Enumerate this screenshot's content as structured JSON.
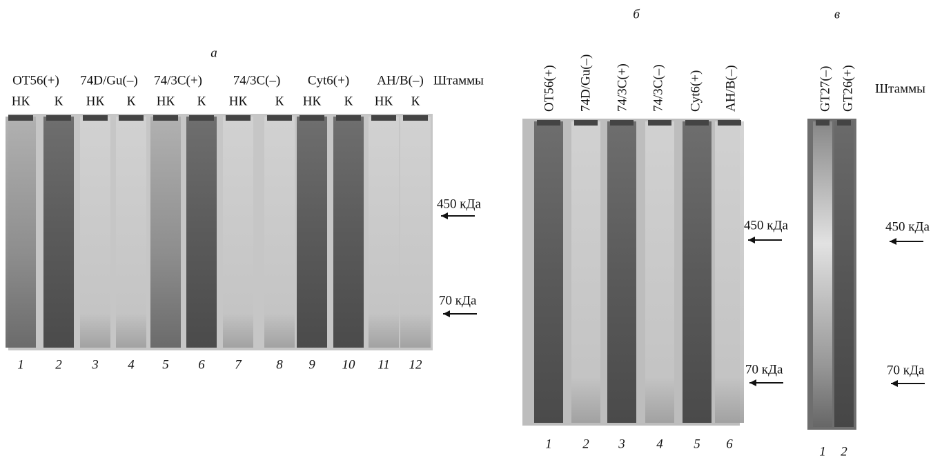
{
  "panels": [
    {
      "label": "а",
      "strains": [
        "OT56(+)",
        "74D/Gu(–)",
        "74/3C(+)",
        "74/3C(–)",
        "Cyt6(+)",
        "AH/B(–)"
      ],
      "strains_heading": "Штаммы",
      "sample_types": [
        "НК",
        "К",
        "НК",
        "К",
        "НК",
        "К",
        "НК",
        "К",
        "НК",
        "К",
        "НК",
        "К"
      ],
      "lanes": [
        "1",
        "2",
        "3",
        "4",
        "5",
        "6",
        "7",
        "8",
        "9",
        "10",
        "11",
        "12"
      ],
      "markers": [
        "450 кДа",
        "70 кДа"
      ]
    },
    {
      "label": "б",
      "strains": [
        "OT56(+)",
        "74D/Gu(–)",
        "74/3C(+)",
        "74/3C(–)",
        "Cyt6(+)",
        "AH/B(–)"
      ],
      "lanes": [
        "1",
        "2",
        "3",
        "4",
        "5",
        "6"
      ],
      "markers": [
        "450 кДа",
        "70 кДа"
      ]
    },
    {
      "label": "в",
      "strains": [
        "GT27(–)",
        "GT26(+)"
      ],
      "strains_heading": "Штаммы",
      "lanes": [
        "1",
        "2"
      ],
      "markers": [
        "450 кДа",
        "70 кДа"
      ]
    }
  ]
}
